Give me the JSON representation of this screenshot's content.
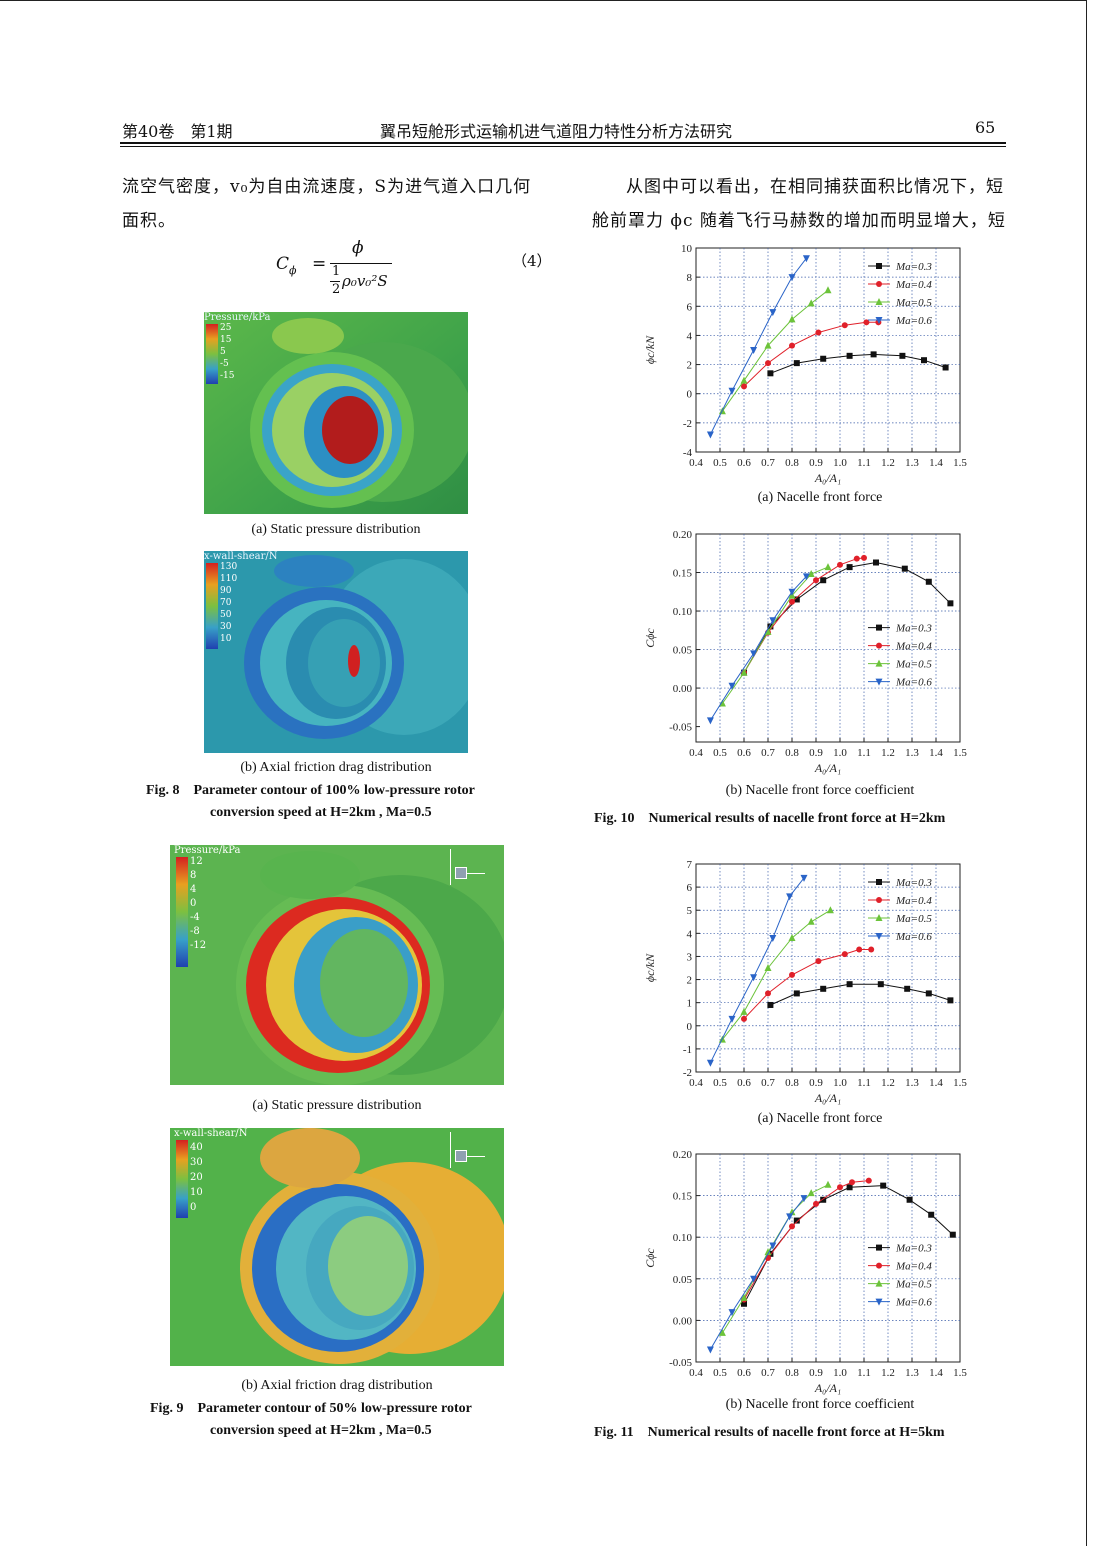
{
  "header": {
    "left": "第40卷　第1期",
    "center": "翼吊短舱形式运输机进气道阻力特性分析方法研究",
    "page": "65"
  },
  "left_column": {
    "para1_line1": "流空气密度，v₀为自由流速度，S为进气道入口几何",
    "para1_line2": "面积。",
    "eq_lhs": "C",
    "eq_lhs_sub": "ϕ",
    "eq_num_sym": "ϕ",
    "eq_den_half_num": "1",
    "eq_den_half_den": "2",
    "eq_den_rest": "ρ₀v₀²S",
    "eq_label": "（4）"
  },
  "right_column": {
    "para_line1": "从图中可以看出，在相同捕获面积比情况下，短",
    "para_line2": "舱前罩力 ϕc 随着飞行马赫数的增加而明显增大，短"
  },
  "fig8": {
    "a_legend_title": "Pressure/kPa",
    "a_legend_values": [
      "25",
      "15",
      "5",
      "-5",
      "-15"
    ],
    "a_caption": "(a) Static pressure distribution",
    "b_legend_title": "x-wall-shear/N",
    "b_legend_values": [
      "130",
      "110",
      "90",
      "70",
      "50",
      "30",
      "10"
    ],
    "b_caption": "(b) Axial friction drag distribution",
    "caption_label": "Fig. 8",
    "caption_line1": "Parameter contour of 100% low-pressure rotor",
    "caption_line2": "conversion speed at H=2km , Ma=0.5"
  },
  "fig9": {
    "a_legend_title": "Pressure/kPa",
    "a_legend_values": [
      "12",
      "8",
      "4",
      "0",
      "-4",
      "-8",
      "-12"
    ],
    "a_caption": "(a) Static pressure distribution",
    "b_legend_title": "x-wall-shear/N",
    "b_legend_values": [
      "40",
      "30",
      "20",
      "10",
      "0"
    ],
    "b_caption": "(b) Axial friction drag distribution",
    "caption_label": "Fig. 9",
    "caption_line1": "Parameter contour of 50% low-pressure rotor",
    "caption_line2": "conversion speed at H=2km , Ma=0.5"
  },
  "fig10": {
    "a_caption": "(a) Nacelle front force",
    "b_caption": "(b) Nacelle front force coefficient",
    "caption_label": "Fig. 10",
    "caption_text": "Numerical results of nacelle front force at H=2km"
  },
  "fig11": {
    "a_caption": "(a) Nacelle front force",
    "b_caption": "(b) Nacelle front force coefficient",
    "caption_label": "Fig. 11",
    "caption_text": "Numerical results of nacelle front force at H=5km"
  },
  "colors": {
    "ma03": "#111111",
    "ma04": "#e0202a",
    "ma05": "#6cc33a",
    "ma06": "#2a64c8"
  },
  "chart_data": [
    {
      "id": "fig10a",
      "type": "line",
      "xlabel": "A₀/A₁",
      "ylabel": "ϕc/kN",
      "xlim": [
        0.4,
        1.5
      ],
      "ylim": [
        -4,
        10
      ],
      "xticks": [
        "0.4",
        "0.5",
        "0.6",
        "0.7",
        "0.8",
        "0.9",
        "1.0",
        "1.1",
        "1.2",
        "1.3",
        "1.4",
        "1.5"
      ],
      "yticks": [
        "-4",
        "-2",
        "0",
        "2",
        "4",
        "6",
        "8",
        "10"
      ],
      "legend": "top-right",
      "series": [
        {
          "name": "Ma=0.3",
          "marker": "square",
          "x": [
            0.71,
            0.82,
            0.93,
            1.04,
            1.14,
            1.26,
            1.35,
            1.44
          ],
          "y": [
            1.4,
            2.1,
            2.4,
            2.6,
            2.7,
            2.6,
            2.3,
            1.8
          ]
        },
        {
          "name": "Ma=0.4",
          "marker": "circle",
          "x": [
            0.6,
            0.7,
            0.8,
            0.91,
            1.02,
            1.11,
            1.16
          ],
          "y": [
            0.5,
            2.1,
            3.3,
            4.2,
            4.7,
            4.9,
            4.9
          ]
        },
        {
          "name": "Ma=0.5",
          "marker": "triangle-up",
          "x": [
            0.51,
            0.6,
            0.7,
            0.8,
            0.88,
            0.95
          ],
          "y": [
            -1.2,
            0.9,
            3.3,
            5.1,
            6.2,
            7.1
          ]
        },
        {
          "name": "Ma=0.6",
          "marker": "triangle-down",
          "x": [
            0.46,
            0.55,
            0.64,
            0.72,
            0.8,
            0.86
          ],
          "y": [
            -2.8,
            0.2,
            3.0,
            5.6,
            8.0,
            9.3
          ]
        }
      ]
    },
    {
      "id": "fig10b",
      "type": "line",
      "xlabel": "A₀/A₁",
      "ylabel": "Cϕc",
      "xlim": [
        0.4,
        1.5
      ],
      "ylim": [
        -0.07,
        0.2
      ],
      "xticks": [
        "0.4",
        "0.5",
        "0.6",
        "0.7",
        "0.8",
        "0.9",
        "1.0",
        "1.1",
        "1.2",
        "1.3",
        "1.4",
        "1.5"
      ],
      "yticks": [
        "-0.05",
        "0.00",
        "0.05",
        "0.10",
        "0.15",
        "0.20"
      ],
      "legend": "center-right",
      "series": [
        {
          "name": "Ma=0.3",
          "marker": "square",
          "x": [
            0.6,
            0.71,
            0.82,
            0.93,
            1.04,
            1.15,
            1.27,
            1.37,
            1.46
          ],
          "y": [
            0.02,
            0.08,
            0.115,
            0.14,
            0.157,
            0.163,
            0.155,
            0.138,
            0.11
          ]
        },
        {
          "name": "Ma=0.4",
          "marker": "circle",
          "x": [
            0.6,
            0.7,
            0.8,
            0.9,
            1.0,
            1.07,
            1.1
          ],
          "y": [
            0.02,
            0.072,
            0.112,
            0.14,
            0.16,
            0.168,
            0.169
          ]
        },
        {
          "name": "Ma=0.5",
          "marker": "triangle-up",
          "x": [
            0.51,
            0.6,
            0.7,
            0.8,
            0.88,
            0.95
          ],
          "y": [
            -0.02,
            0.02,
            0.073,
            0.12,
            0.148,
            0.157
          ]
        },
        {
          "name": "Ma=0.6",
          "marker": "triangle-down",
          "x": [
            0.46,
            0.55,
            0.64,
            0.72,
            0.8,
            0.86
          ],
          "y": [
            -0.042,
            0.003,
            0.045,
            0.088,
            0.125,
            0.145
          ]
        }
      ]
    },
    {
      "id": "fig11a",
      "type": "line",
      "xlabel": "A₀/A₁",
      "ylabel": "ϕc/kN",
      "xlim": [
        0.4,
        1.5
      ],
      "ylim": [
        -2,
        7
      ],
      "xticks": [
        "0.4",
        "0.5",
        "0.6",
        "0.7",
        "0.8",
        "0.9",
        "1.0",
        "1.1",
        "1.2",
        "1.3",
        "1.4",
        "1.5"
      ],
      "yticks": [
        "-2",
        "-1",
        "0",
        "1",
        "2",
        "3",
        "4",
        "5",
        "6",
        "7"
      ],
      "legend": "top-right",
      "series": [
        {
          "name": "Ma=0.3",
          "marker": "square",
          "x": [
            0.71,
            0.82,
            0.93,
            1.04,
            1.17,
            1.28,
            1.37,
            1.46
          ],
          "y": [
            0.9,
            1.4,
            1.6,
            1.8,
            1.8,
            1.6,
            1.4,
            1.1
          ]
        },
        {
          "name": "Ma=0.4",
          "marker": "circle",
          "x": [
            0.6,
            0.7,
            0.8,
            0.91,
            1.02,
            1.08,
            1.13
          ],
          "y": [
            0.3,
            1.4,
            2.2,
            2.8,
            3.1,
            3.3,
            3.3
          ]
        },
        {
          "name": "Ma=0.5",
          "marker": "triangle-up",
          "x": [
            0.51,
            0.6,
            0.7,
            0.8,
            0.88,
            0.96
          ],
          "y": [
            -0.6,
            0.6,
            2.5,
            3.8,
            4.5,
            5.0
          ]
        },
        {
          "name": "Ma=0.6",
          "marker": "triangle-down",
          "x": [
            0.46,
            0.55,
            0.64,
            0.72,
            0.79,
            0.85
          ],
          "y": [
            -1.6,
            0.3,
            2.1,
            3.8,
            5.6,
            6.4
          ]
        }
      ]
    },
    {
      "id": "fig11b",
      "type": "line",
      "xlabel": "A₀/A₁",
      "ylabel": "Cϕc",
      "xlim": [
        0.4,
        1.5
      ],
      "ylim": [
        -0.05,
        0.2
      ],
      "xticks": [
        "0.4",
        "0.5",
        "0.6",
        "0.7",
        "0.8",
        "0.9",
        "1.0",
        "1.1",
        "1.2",
        "1.3",
        "1.4",
        "1.5"
      ],
      "yticks": [
        "-0.05",
        "0.00",
        "0.05",
        "0.10",
        "0.15",
        "0.20"
      ],
      "legend": "center-right",
      "series": [
        {
          "name": "Ma=0.3",
          "marker": "square",
          "x": [
            0.6,
            0.71,
            0.82,
            0.93,
            1.04,
            1.18,
            1.29,
            1.38,
            1.47
          ],
          "y": [
            0.02,
            0.08,
            0.12,
            0.145,
            0.16,
            0.162,
            0.145,
            0.127,
            0.103
          ]
        },
        {
          "name": "Ma=0.4",
          "marker": "circle",
          "x": [
            0.6,
            0.7,
            0.8,
            0.9,
            1.0,
            1.05,
            1.12
          ],
          "y": [
            0.025,
            0.075,
            0.113,
            0.14,
            0.16,
            0.166,
            0.168
          ]
        },
        {
          "name": "Ma=0.5",
          "marker": "triangle-up",
          "x": [
            0.51,
            0.6,
            0.7,
            0.8,
            0.88,
            0.95
          ],
          "y": [
            -0.015,
            0.027,
            0.082,
            0.13,
            0.153,
            0.163
          ]
        },
        {
          "name": "Ma=0.6",
          "marker": "triangle-down",
          "x": [
            0.46,
            0.55,
            0.64,
            0.72,
            0.79,
            0.85
          ],
          "y": [
            -0.035,
            0.01,
            0.05,
            0.09,
            0.125,
            0.147
          ]
        }
      ]
    }
  ]
}
